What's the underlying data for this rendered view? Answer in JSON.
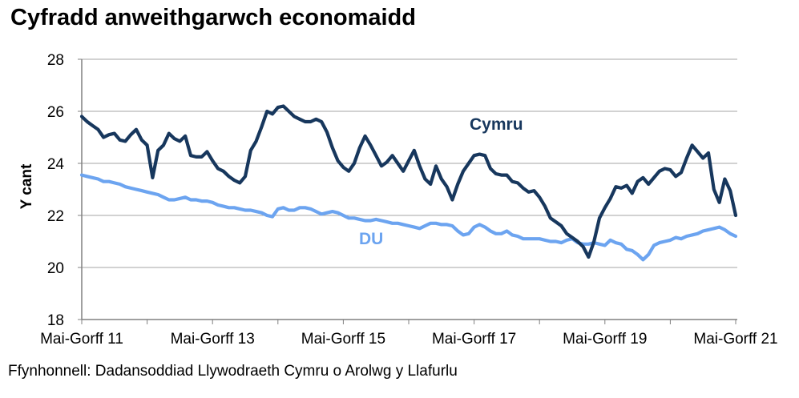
{
  "chart_data": {
    "type": "line",
    "title": "Cyfradd anweithgarwch economaidd",
    "ylabel": "Y cant",
    "source": "Ffynhonnell: Dadansoddiad Llywodraeth Cymru o Arolwg y Llafurlu",
    "ylim": [
      18,
      28
    ],
    "yticks": [
      18,
      20,
      22,
      24,
      26,
      28
    ],
    "grid": "horizontal-gray-lines",
    "legend": "inline-labels-near-lines",
    "x_tick_labels": [
      "Mai-Gorff 11",
      "Mai-Gorff 13",
      "Mai-Gorff 15",
      "Mai-Gorff 17",
      "Mai-Gorff 19",
      "Mai-Gorff 21"
    ],
    "x_tick_positions_months": [
      0,
      24,
      48,
      72,
      96,
      120
    ],
    "x_minor_tick_interval_months": 12,
    "n_points": 121,
    "colors": {
      "cymru": "#17375D",
      "du": "#6CA4F0",
      "gridline": "#A6A6A6",
      "axis": "#808080"
    },
    "series": [
      {
        "name": "Cymru",
        "color": "#17375D",
        "values": [
          25.8,
          25.6,
          25.45,
          25.3,
          25.0,
          25.1,
          25.15,
          24.9,
          24.85,
          25.1,
          25.3,
          24.9,
          24.7,
          23.45,
          24.5,
          24.7,
          25.15,
          24.95,
          24.85,
          25.05,
          24.3,
          24.25,
          24.25,
          24.45,
          24.1,
          23.8,
          23.7,
          23.5,
          23.35,
          23.25,
          23.5,
          24.5,
          24.85,
          25.4,
          26.0,
          25.9,
          26.15,
          26.2,
          26.0,
          25.8,
          25.7,
          25.6,
          25.6,
          25.7,
          25.6,
          25.2,
          24.6,
          24.1,
          23.85,
          23.7,
          24.0,
          24.6,
          25.05,
          24.7,
          24.3,
          23.9,
          24.05,
          24.3,
          24.0,
          23.7,
          24.1,
          24.5,
          23.9,
          23.4,
          23.2,
          23.9,
          23.4,
          23.1,
          22.6,
          23.2,
          23.7,
          24.0,
          24.3,
          24.35,
          24.3,
          23.8,
          23.6,
          23.55,
          23.55,
          23.3,
          23.25,
          23.05,
          22.9,
          22.95,
          22.7,
          22.35,
          21.9,
          21.75,
          21.6,
          21.3,
          21.15,
          21.0,
          20.8,
          20.4,
          21.0,
          21.9,
          22.3,
          22.65,
          23.1,
          23.05,
          23.15,
          22.85,
          23.3,
          23.45,
          23.2,
          23.45,
          23.7,
          23.8,
          23.75,
          23.5,
          23.65,
          24.2,
          24.7,
          24.45,
          24.2,
          24.4,
          23.0,
          22.5,
          23.4,
          22.95,
          22.0
        ]
      },
      {
        "name": "DU",
        "color": "#6CA4F0",
        "values": [
          23.55,
          23.5,
          23.45,
          23.4,
          23.3,
          23.3,
          23.25,
          23.2,
          23.1,
          23.05,
          23.0,
          22.95,
          22.9,
          22.85,
          22.8,
          22.7,
          22.6,
          22.6,
          22.65,
          22.7,
          22.6,
          22.6,
          22.55,
          22.55,
          22.5,
          22.4,
          22.35,
          22.3,
          22.3,
          22.25,
          22.2,
          22.2,
          22.15,
          22.1,
          22.0,
          21.95,
          22.25,
          22.3,
          22.2,
          22.2,
          22.3,
          22.3,
          22.25,
          22.15,
          22.05,
          22.1,
          22.15,
          22.1,
          22.0,
          21.9,
          21.9,
          21.85,
          21.8,
          21.8,
          21.85,
          21.8,
          21.75,
          21.7,
          21.7,
          21.65,
          21.6,
          21.55,
          21.5,
          21.6,
          21.7,
          21.7,
          21.65,
          21.65,
          21.6,
          21.4,
          21.25,
          21.3,
          21.55,
          21.65,
          21.55,
          21.4,
          21.3,
          21.3,
          21.4,
          21.25,
          21.2,
          21.1,
          21.1,
          21.1,
          21.1,
          21.05,
          21.0,
          21.0,
          20.95,
          21.05,
          21.1,
          20.95,
          20.9,
          20.9,
          20.95,
          20.9,
          20.85,
          21.05,
          20.95,
          20.9,
          20.7,
          20.65,
          20.5,
          20.3,
          20.5,
          20.85,
          20.95,
          21.0,
          21.05,
          21.15,
          21.1,
          21.2,
          21.25,
          21.3,
          21.4,
          21.45,
          21.5,
          21.55,
          21.45,
          21.3,
          21.2
        ]
      }
    ]
  }
}
